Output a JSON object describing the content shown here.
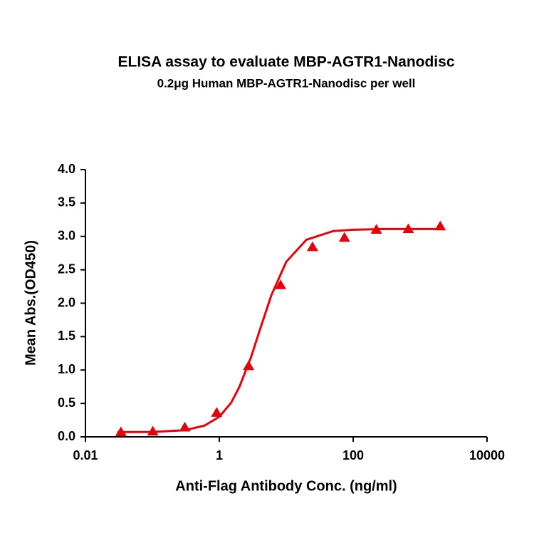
{
  "chart_data": {
    "type": "scatter",
    "title": "ELISA assay to evaluate MBP-AGTR1-Nanodisc",
    "subtitle": "0.2μg Human MBP-AGTR1-Nanodisc per well",
    "x_label": "Anti-Flag Antibody Conc. (ng/ml)",
    "y_label": "Mean Abs.(OD450)",
    "x_scale": "log",
    "xlim": [
      0.01,
      10000
    ],
    "xticks": [
      0.01,
      1,
      100,
      10000
    ],
    "ylim": [
      0,
      4
    ],
    "yticks": [
      {
        "value": 0,
        "label": "0.0"
      },
      {
        "value": 0.5,
        "label": "0.5"
      },
      {
        "value": 1,
        "label": "1.0"
      },
      {
        "value": 1.5,
        "label": "1.5"
      },
      {
        "value": 2,
        "label": "2.0"
      },
      {
        "value": 2.5,
        "label": "2.5"
      },
      {
        "value": 3,
        "label": "3.0"
      },
      {
        "value": 3.5,
        "label": "3.5"
      },
      {
        "value": 4,
        "label": "4.0"
      }
    ],
    "series": [
      {
        "kind": "points",
        "color": "#e8000b",
        "x": [
          0.0339,
          0.1016,
          0.305,
          0.914,
          2.743,
          8.23,
          24.69,
          74.07,
          222.2,
          666.7,
          2000
        ],
        "values": [
          0.07,
          0.08,
          0.14,
          0.36,
          1.06,
          2.27,
          2.84,
          2.98,
          3.1,
          3.11,
          3.15
        ]
      },
      {
        "kind": "line",
        "color": "#e8000b",
        "x": [
          0.03,
          0.1,
          0.3,
          0.6,
          1,
          1.5,
          2,
          3,
          4,
          6,
          10,
          20,
          50,
          100,
          300,
          2000
        ],
        "values": [
          0.07,
          0.074,
          0.098,
          0.167,
          0.3,
          0.51,
          0.75,
          1.2,
          1.59,
          2.12,
          2.62,
          2.95,
          3.08,
          3.1,
          3.11,
          3.11
        ]
      }
    ]
  }
}
